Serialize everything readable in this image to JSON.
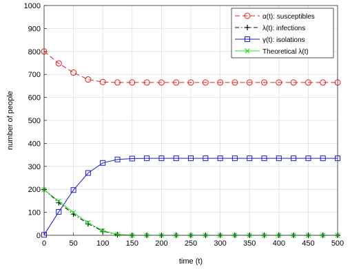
{
  "chart_data": {
    "type": "line",
    "xlabel": "time (t)",
    "ylabel": "number of people",
    "xlim": [
      0,
      500
    ],
    "ylim": [
      0,
      1000
    ],
    "xticks": [
      "0",
      "50",
      "100",
      "150",
      "200",
      "250",
      "300",
      "350",
      "400",
      "450",
      "500"
    ],
    "yticks": [
      "0",
      "100",
      "200",
      "300",
      "400",
      "500",
      "600",
      "700",
      "800",
      "900",
      "1000"
    ],
    "grid": true,
    "legend_position": "top-right",
    "series": [
      {
        "name": "α(t): susceptibles",
        "color": "#e8191f",
        "line": "dashed",
        "marker": "circle",
        "x": [
          0,
          25,
          50,
          75,
          100,
          125,
          150,
          175,
          200,
          225,
          250,
          275,
          300,
          325,
          350,
          375,
          400,
          425,
          450,
          475,
          500
        ],
        "y": [
          800,
          748,
          708,
          678,
          667,
          665,
          665,
          665,
          665,
          665,
          665,
          665,
          665,
          665,
          665,
          665,
          665,
          665,
          665,
          665,
          665
        ]
      },
      {
        "name": "λ(t): infections",
        "color": "#000000",
        "line": "dashdot",
        "marker": "plus",
        "x": [
          0,
          25,
          50,
          75,
          100,
          125,
          150,
          175,
          200,
          225,
          250,
          275,
          300,
          325,
          350,
          375,
          400,
          425,
          450,
          475,
          500
        ],
        "y": [
          199,
          142,
          92,
          50,
          18,
          3,
          0,
          0,
          0,
          0,
          0,
          0,
          0,
          0,
          0,
          0,
          0,
          0,
          0,
          0,
          0
        ]
      },
      {
        "name": "γ(t): isolations",
        "color": "#1a1ac8",
        "line": "solid",
        "marker": "square",
        "x": [
          0,
          25,
          50,
          75,
          100,
          125,
          150,
          175,
          200,
          225,
          250,
          275,
          300,
          325,
          350,
          375,
          400,
          425,
          450,
          475,
          500
        ],
        "y": [
          2,
          102,
          197,
          271,
          315,
          330,
          334,
          335,
          335,
          335,
          335,
          335,
          335,
          335,
          335,
          335,
          335,
          335,
          335,
          335,
          335
        ]
      },
      {
        "name": "Theoretical λ(t)",
        "color": "#18e018",
        "line": "solid",
        "marker": "x",
        "x": [
          0,
          25,
          50,
          75,
          100,
          125,
          150,
          175,
          200,
          225,
          250,
          275,
          300,
          325,
          350,
          375,
          400,
          425,
          450,
          475,
          500
        ],
        "y": [
          199,
          148,
          99,
          55,
          20,
          4,
          0,
          0,
          0,
          0,
          0,
          0,
          0,
          0,
          0,
          0,
          0,
          0,
          0,
          0,
          0
        ]
      }
    ]
  }
}
